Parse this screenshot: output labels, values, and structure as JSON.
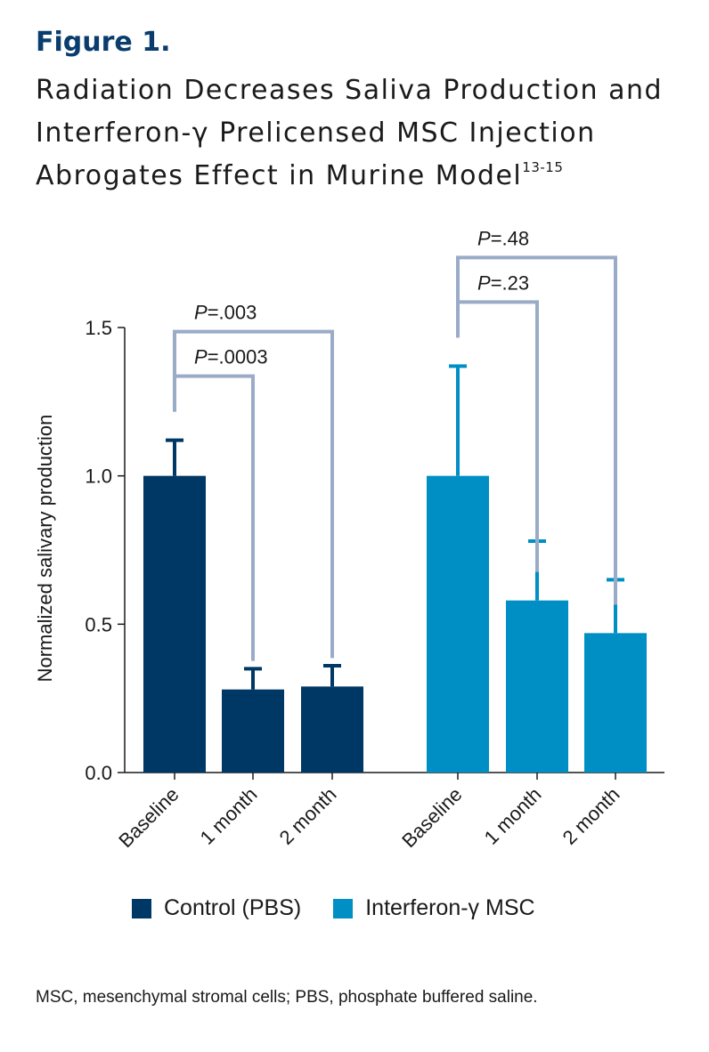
{
  "figure": {
    "label": "Figure 1.",
    "title": "Radiation Decreases Saliva Production and Interferon-γ Prelicensed MSC Injection Abrogates Effect in Murine Model",
    "title_superscript": "13-15"
  },
  "chart_data": {
    "type": "bar",
    "ylabel": "Normalized salivary production",
    "ylim": [
      0,
      1.5
    ],
    "yticks": [
      "0.0",
      "0.5",
      "1.0",
      "1.5"
    ],
    "groups": [
      {
        "name": "Control (PBS)",
        "color": "#003865",
        "categories": [
          "Baseline",
          "1 month",
          "2 month"
        ],
        "values": [
          1.0,
          0.28,
          0.29
        ],
        "errors": [
          0.12,
          0.07,
          0.07
        ],
        "comparisons": [
          {
            "label": "P=.0003",
            "from": 0,
            "to": 1,
            "level": 1
          },
          {
            "label": "P=.003",
            "from": 0,
            "to": 2,
            "level": 2
          }
        ]
      },
      {
        "name": "Interferon-γ MSC",
        "color": "#008fc5",
        "categories": [
          "Baseline",
          "1 month",
          "2 month"
        ],
        "values": [
          1.0,
          0.58,
          0.47
        ],
        "errors": [
          0.37,
          0.2,
          0.18
        ],
        "comparisons": [
          {
            "label": "P=.23",
            "from": 0,
            "to": 1,
            "level": 1
          },
          {
            "label": "P=.48",
            "from": 0,
            "to": 2,
            "level": 2
          }
        ]
      }
    ],
    "legend": [
      "Control (PBS)",
      "Interferon-γ MSC"
    ]
  },
  "legend": {
    "control": {
      "label": "Control (PBS)",
      "color": "#003865"
    },
    "msc": {
      "label": "Interferon-γ MSC",
      "color": "#008fc5"
    }
  },
  "footnote": "MSC, mesenchymal stromal cells; PBS, phosphate buffered saline."
}
